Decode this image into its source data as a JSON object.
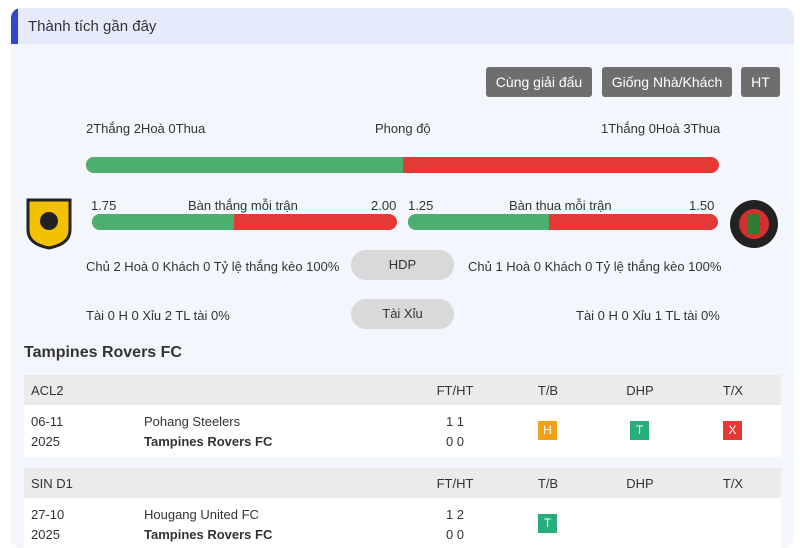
{
  "header": {
    "title": "Thành tích gần đây"
  },
  "filters": [
    "Cùng giải đấu",
    "Giống Nhà/Khách",
    "HT"
  ],
  "form": {
    "home": "2Thắng 2Hoà 0Thua",
    "label": "Phong độ",
    "away": "1Thắng 0Hoà 3Thua"
  },
  "goals_for": {
    "label": "Bàn thắng mỗi trận",
    "values": [
      1.75,
      2
    ],
    "value_labels": [
      "1.75",
      "2.00"
    ]
  },
  "goals_against": {
    "label": "Bàn thua mỗi trận",
    "values": [
      1.25,
      1.5
    ],
    "value_labels": [
      "1.25",
      "1.50"
    ]
  },
  "handicap": {
    "home": "Chủ 2 Hoà 0 Khách 0 Tỷ lệ thắng kèo 100%",
    "button": "HDP",
    "away": "Chủ 1 Hoà 0 Khách 0 Tỷ lệ thắng kèo 100%"
  },
  "over_under": {
    "home": "Tài 0 H 0 Xỉu 2 TL tài 0%",
    "button": "Tài Xỉu",
    "away": "Tài 0 H 0 Xỉu 1 TL tài 0%"
  },
  "team": {
    "name": "Tampines Rovers FC"
  },
  "groups": [
    {
      "league": "ACL2",
      "columns": [
        "FT/HT",
        "T/B",
        "DHP",
        "T/X"
      ],
      "matches": [
        {
          "date": "06-11",
          "year": "2025",
          "home": "Pohang Steelers",
          "away": "Tampines Rovers FC",
          "score_home": "1 1",
          "score_away": "0 0",
          "tb": {
            "text": "H",
            "color": "#f5a01a"
          },
          "dhp": {
            "text": "T",
            "color": "#27ae7a"
          },
          "tx": {
            "text": "X",
            "color": "#e53935"
          }
        }
      ]
    },
    {
      "league": "SIN D1",
      "columns": [
        "FT/HT",
        "T/B",
        "DHP",
        "T/X"
      ],
      "matches": [
        {
          "date": "27-10",
          "year": "2025",
          "home": "Hougang United FC",
          "away": "Tampines Rovers FC",
          "score_home": "1 2",
          "score_away": "0 0",
          "tb": {
            "text": "T",
            "color": "#27ae7a"
          },
          "dhp": null,
          "tx": null
        }
      ]
    }
  ]
}
